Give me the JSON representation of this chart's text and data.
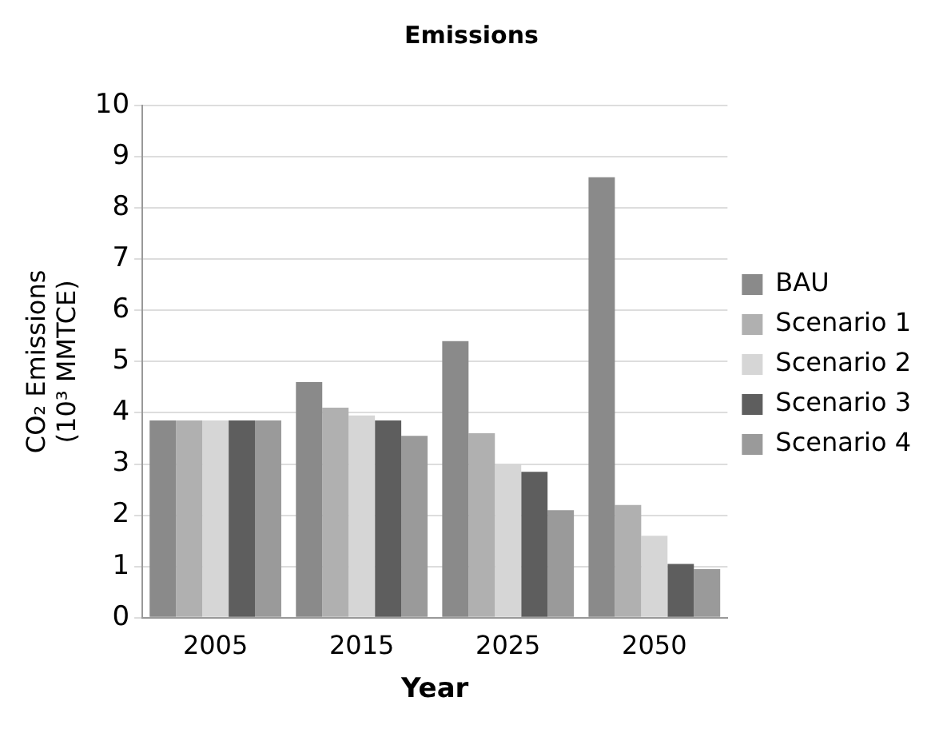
{
  "chart_data": {
    "type": "bar",
    "title": "Emissions",
    "xlabel": "Year",
    "ylabel": "CO₂ Emissions (10³ MMTCE)",
    "categories": [
      "2005",
      "2015",
      "2025",
      "2050"
    ],
    "series": [
      {
        "name": "BAU",
        "color": "#8a8a8a",
        "values": [
          3.85,
          4.6,
          5.4,
          8.6
        ]
      },
      {
        "name": "Scenario 1",
        "color": "#b0b0b0",
        "values": [
          3.85,
          4.1,
          3.6,
          2.2
        ]
      },
      {
        "name": "Scenario 2",
        "color": "#d6d6d6",
        "values": [
          3.85,
          3.95,
          3.0,
          1.6
        ]
      },
      {
        "name": "Scenario 3",
        "color": "#5e5e5e",
        "values": [
          3.85,
          3.85,
          2.85,
          1.05
        ]
      },
      {
        "name": "Scenario 4",
        "color": "#9a9a9a",
        "values": [
          3.85,
          3.55,
          2.1,
          0.95
        ]
      }
    ],
    "ylim": [
      0,
      10
    ],
    "yticks": [
      0,
      1,
      2,
      3,
      4,
      5,
      6,
      7,
      8,
      9,
      10
    ],
    "grid": "y",
    "legend": "right"
  }
}
